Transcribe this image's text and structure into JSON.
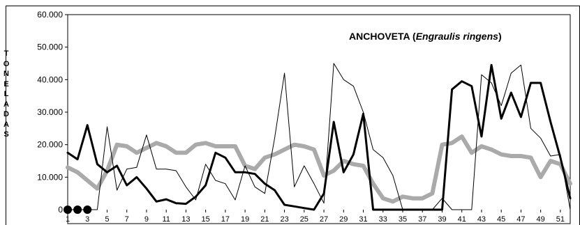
{
  "chart_data": {
    "type": "line",
    "title": "ANCHOVETA",
    "title_species": "Engraulis ringens",
    "ylabel": "TONELADAS",
    "xlabel": "",
    "ylim": [
      0,
      60000
    ],
    "y_ticks": [
      "0",
      "10.000",
      "20.000",
      "30.000",
      "40.000",
      "50.000",
      "60.000"
    ],
    "y_tick_values": [
      0,
      10000,
      20000,
      30000,
      40000,
      50000,
      60000
    ],
    "x_ticks": [
      "1",
      "3",
      "5",
      "7",
      "9",
      "11",
      "13",
      "15",
      "17",
      "19",
      "21",
      "23",
      "25",
      "27",
      "29",
      "31",
      "33",
      "35",
      "37",
      "39",
      "41",
      "43",
      "45",
      "47",
      "49",
      "51"
    ],
    "xlim": [
      1,
      52
    ],
    "grid": false,
    "legend": "none",
    "colors": {
      "thick": "#000000",
      "thin": "#000000",
      "gray": "#aaaaaa",
      "markers": "#000000"
    },
    "markers": [
      1,
      2,
      3
    ],
    "series": [
      {
        "style": "thick",
        "values": [
          17500,
          15500,
          26000,
          14000,
          11500,
          13500,
          7500,
          10000,
          6500,
          2500,
          3200,
          2000,
          1800,
          4000,
          7500,
          17500,
          16000,
          11500,
          11500,
          11000,
          8000,
          6000,
          1500,
          1000,
          500,
          0,
          5000,
          27000,
          11500,
          17000,
          29500,
          0,
          0,
          0,
          0,
          0,
          0,
          0,
          0,
          37000,
          39500,
          38000,
          22500,
          44500,
          28000,
          36000,
          28500,
          39000,
          39000,
          27000,
          16000,
          3500
        ]
      },
      {
        "style": "thin",
        "values": [
          0,
          0,
          0,
          0,
          25500,
          6000,
          12500,
          13000,
          23000,
          12500,
          12500,
          12000,
          7000,
          3000,
          14000,
          9000,
          8000,
          3000,
          13500,
          7000,
          5000,
          22000,
          42000,
          7000,
          13500,
          8000,
          2000,
          45000,
          40000,
          38000,
          30000,
          18500,
          16000,
          10500,
          0,
          0,
          0,
          0,
          3500,
          0,
          0,
          0,
          41500,
          39000,
          32000,
          42000,
          44500,
          25000,
          22000,
          16500,
          17000,
          0
        ]
      },
      {
        "style": "gray",
        "values": [
          13000,
          11500,
          9000,
          6500,
          12000,
          20000,
          19500,
          17500,
          19000,
          20500,
          19500,
          17500,
          17500,
          20000,
          20500,
          19500,
          19500,
          19500,
          13500,
          12500,
          16000,
          17000,
          18500,
          20000,
          19500,
          18500,
          10500,
          12000,
          15000,
          14000,
          13500,
          8000,
          3500,
          2500,
          4000,
          3500,
          3500,
          5000,
          20000,
          20500,
          22500,
          17500,
          19500,
          18500,
          17000,
          16500,
          16500,
          16000,
          10000,
          15000,
          14000,
          8000
        ]
      }
    ]
  }
}
